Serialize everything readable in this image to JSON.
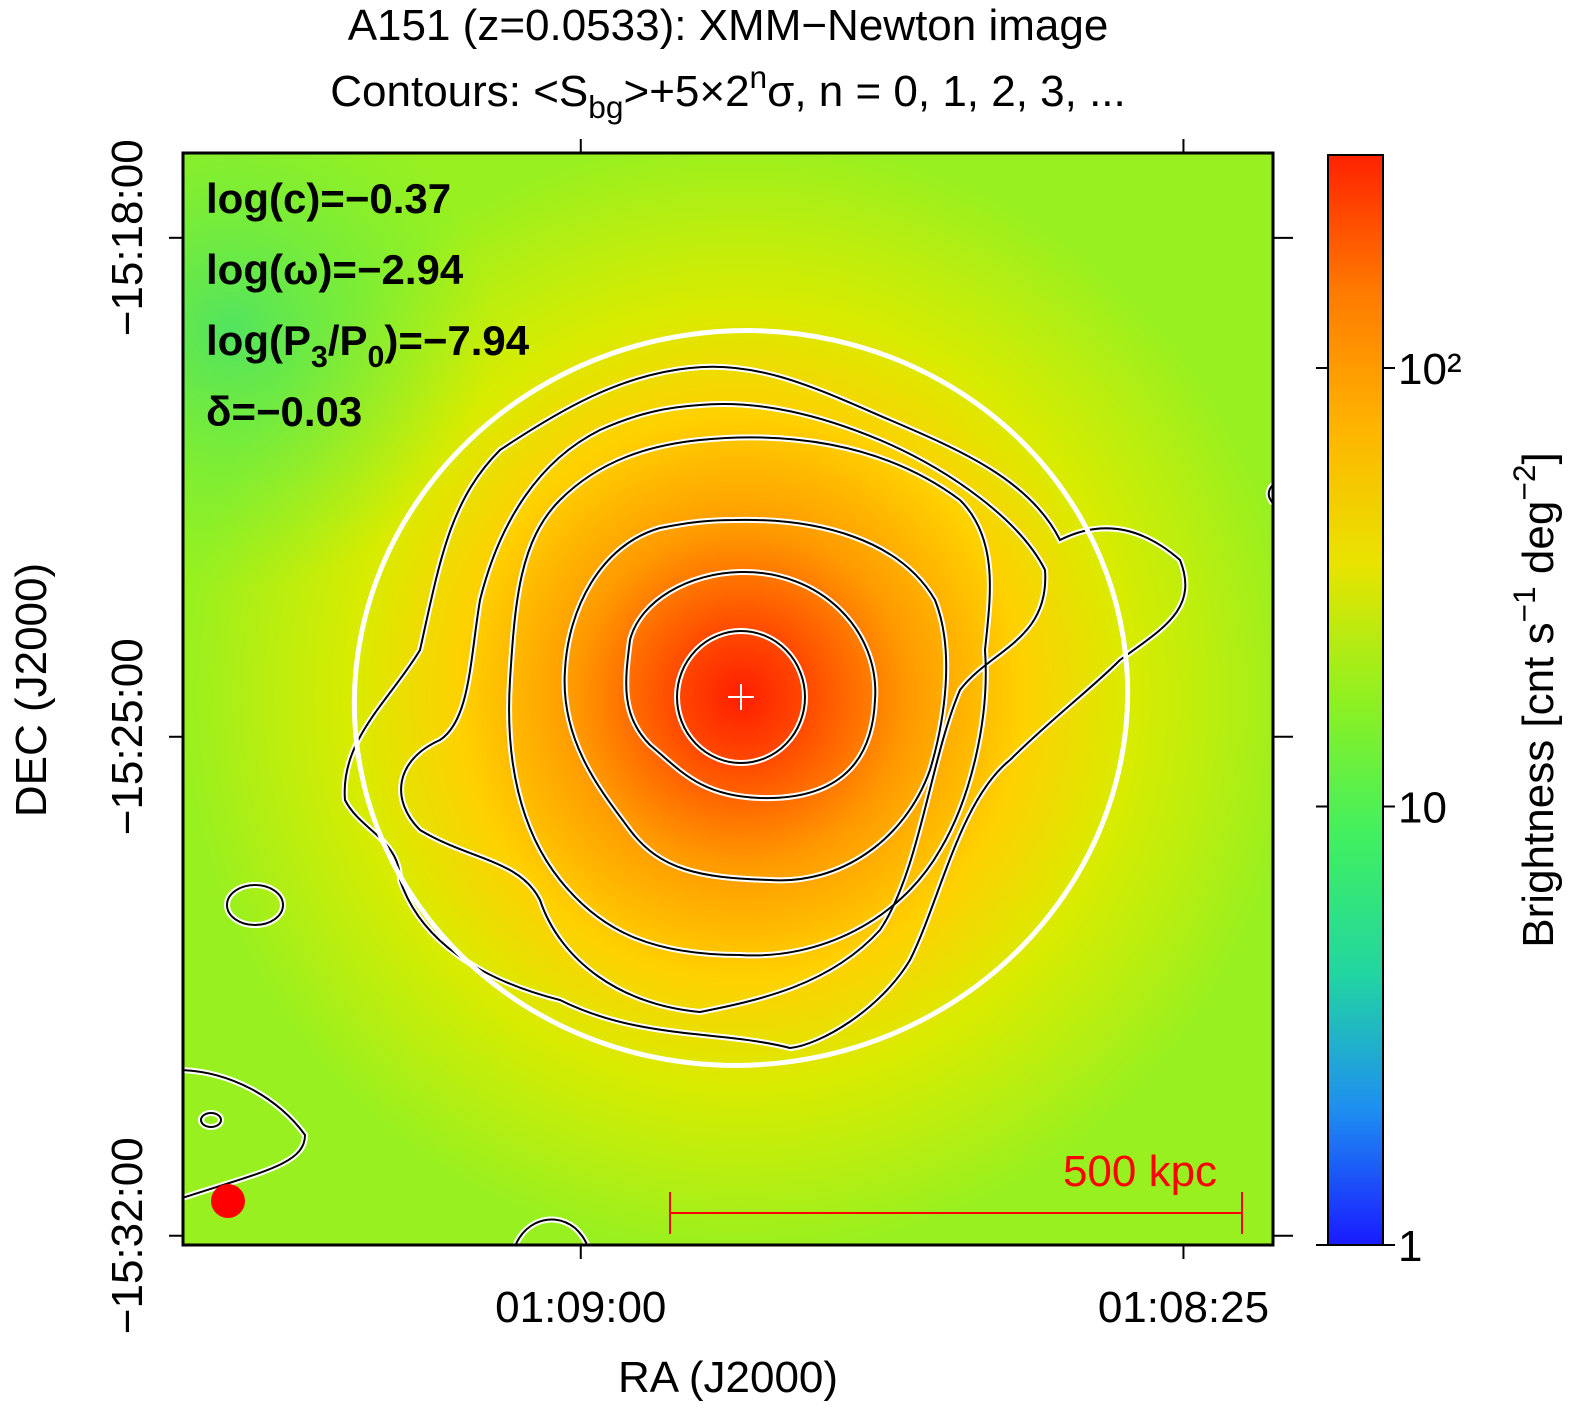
{
  "chart_data": {
    "type": "image",
    "title": "A151 (z=0.0533): XMM−Newton image",
    "subtitle": [
      "Contours: <S",
      {
        "sub": "bg"
      },
      ">+5×2",
      {
        "sup": "n"
      },
      "σ, n = 0, 1, 2, 3, ..."
    ],
    "x_label": "RA (J2000)",
    "y_label": "DEC (J2000)",
    "xlim": [
      4163.1,
      4099.8
    ],
    "xticks": [
      {
        "value": 4140,
        "label": "01:09:00"
      },
      {
        "value": 4105,
        "label": "01:08:25"
      }
    ],
    "ylim": [
      -932.13,
      -916.81
    ],
    "yticks": [
      {
        "value": -918,
        "label": "−15:18:00"
      },
      {
        "value": -925,
        "label": "−15:25:00"
      },
      {
        "value": -932,
        "label": "−15:32:00"
      }
    ],
    "colorbar": {
      "label": [
        "Brightness [cnt s",
        {
          "sup": "−1"
        },
        " deg",
        {
          "sup": "−2"
        },
        "]"
      ],
      "log_scale": true,
      "clim": [
        1,
        306
      ],
      "cticks": [
        1,
        10,
        {
          "value": 100,
          "label": "10²"
        }
      ],
      "colormap": [
        "#1a1aff",
        "#1e8ff0",
        "#22d6a0",
        "#40f060",
        "#90f020",
        "#e8e400",
        "#ffb400",
        "#ff7a00",
        "#ff2200"
      ]
    },
    "annotations": [
      [
        "log(c)=−0.37"
      ],
      [
        "log(ω)=−2.94"
      ],
      [
        "log(P",
        {
          "sub": "3"
        },
        "/P",
        {
          "sub": "0"
        },
        ")=−7.94"
      ],
      [
        "δ=−0.03"
      ]
    ],
    "scale_bar_label": "500 kpc"
  }
}
